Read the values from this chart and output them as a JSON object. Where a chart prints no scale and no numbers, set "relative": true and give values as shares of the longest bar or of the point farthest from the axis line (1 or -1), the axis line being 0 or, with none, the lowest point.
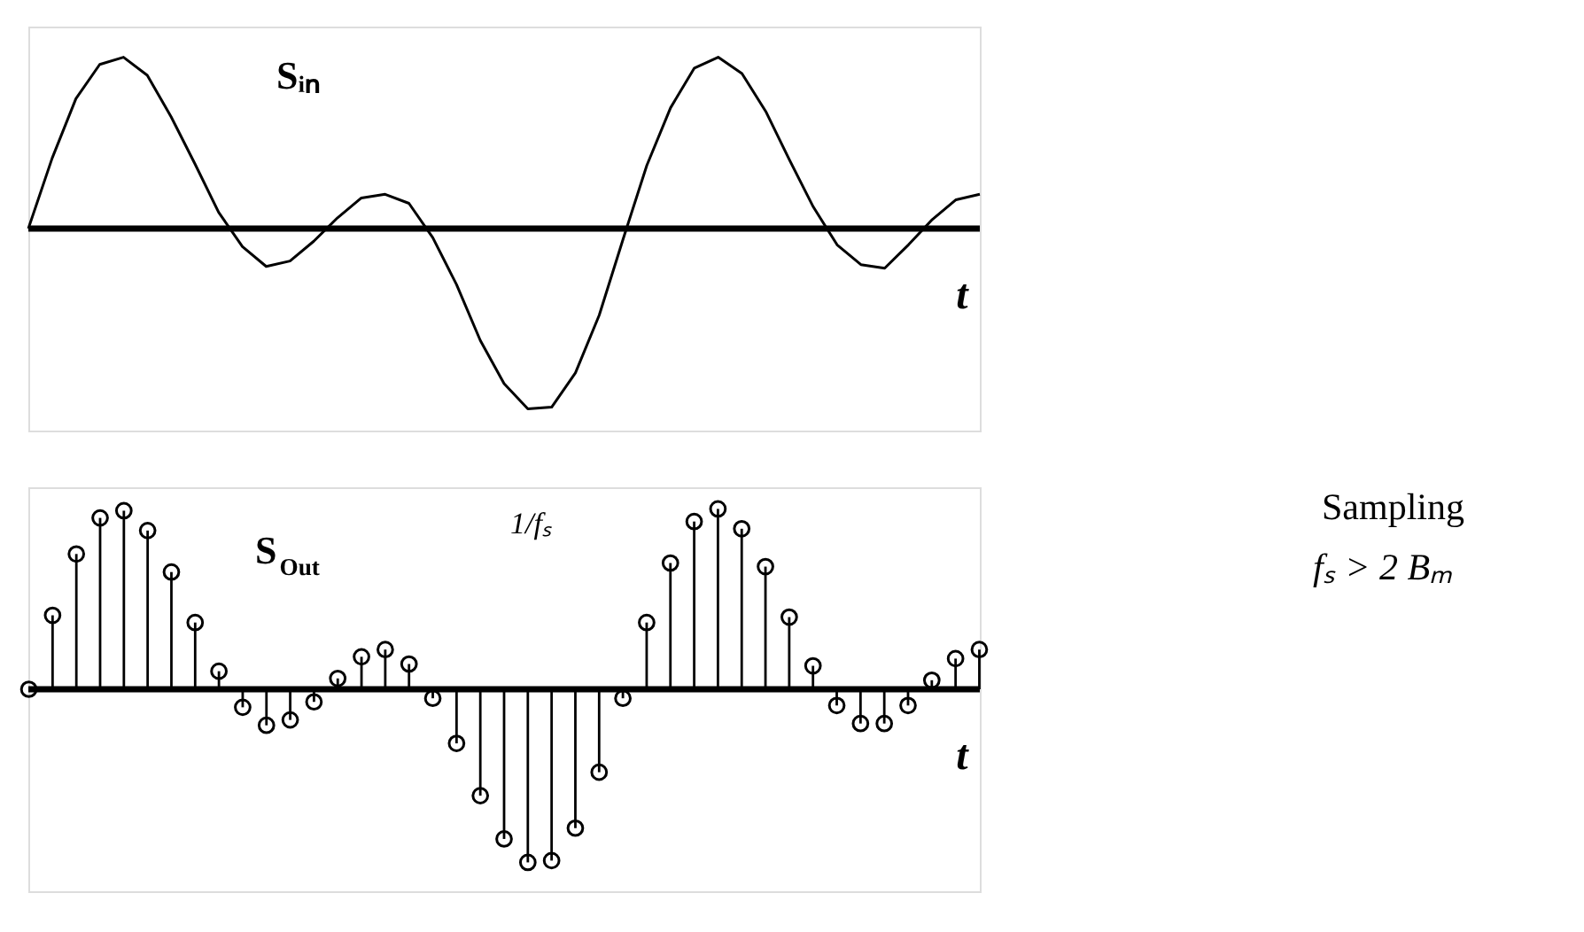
{
  "chart_data": [
    {
      "type": "line",
      "relative": true,
      "tick_labels": false,
      "grid": false,
      "xlabel": "t",
      "categories": [
        null,
        null,
        null,
        null,
        null,
        null,
        null,
        null,
        null,
        null,
        null,
        null,
        null,
        null,
        null,
        null,
        null,
        null,
        null,
        null,
        null,
        null,
        null,
        null,
        null,
        null,
        null,
        null,
        null,
        null,
        null,
        null,
        null,
        null,
        null,
        null,
        null,
        null,
        null,
        null,
        null
      ],
      "series": [
        {
          "color": "#000000",
          "values": [
            0,
            0.39,
            0.72,
            0.91,
            0.95,
            0.85,
            0.62,
            0.36,
            0.09,
            -0.1,
            -0.21,
            -0.18,
            -0.07,
            0.06,
            0.17,
            0.19,
            0.14,
            -0.05,
            -0.31,
            -0.62,
            -0.86,
            -1.0,
            -0.99,
            -0.8,
            -0.48,
            -0.06,
            0.35,
            0.67,
            0.89,
            0.95,
            0.86,
            0.65,
            0.38,
            0.12,
            -0.09,
            -0.2,
            -0.22,
            -0.09,
            0.05,
            0.16,
            0.19
          ]
        }
      ],
      "ref_lines": [
        {
          "axis": "y",
          "value": 0
        }
      ],
      "annotations": [
        "Sᵢₙ"
      ]
    },
    {
      "type": "lollipop",
      "relative": true,
      "tick_labels": false,
      "grid": false,
      "marker": "circle",
      "xlabel": "t",
      "categories": [
        null,
        null,
        null,
        null,
        null,
        null,
        null,
        null,
        null,
        null,
        null,
        null,
        null,
        null,
        null,
        null,
        null,
        null,
        null,
        null,
        null,
        null,
        null,
        null,
        null,
        null,
        null,
        null,
        null,
        null,
        null,
        null,
        null,
        null,
        null,
        null,
        null,
        null,
        null,
        null,
        null
      ],
      "series": [
        {
          "color": "#000000",
          "values": [
            0,
            0.41,
            0.75,
            0.95,
            0.99,
            0.88,
            0.65,
            0.37,
            0.1,
            -0.1,
            -0.2,
            -0.17,
            -0.07,
            0.06,
            0.18,
            0.22,
            0.14,
            -0.05,
            -0.3,
            -0.59,
            -0.83,
            -0.96,
            -0.95,
            -0.77,
            -0.46,
            -0.05,
            0.37,
            0.7,
            0.93,
            1.0,
            0.89,
            0.68,
            0.4,
            0.13,
            -0.09,
            -0.19,
            -0.19,
            -0.09,
            0.05,
            0.17,
            0.22
          ]
        }
      ],
      "ref_lines": [
        {
          "axis": "y",
          "value": 0
        }
      ],
      "annotations": [
        "S$_{Out}$",
        "1/fₛ"
      ]
    },
    {
      "type": "other",
      "annotations": [
        "Sampling",
        "fₛ > 2 Bₘ"
      ]
    }
  ]
}
